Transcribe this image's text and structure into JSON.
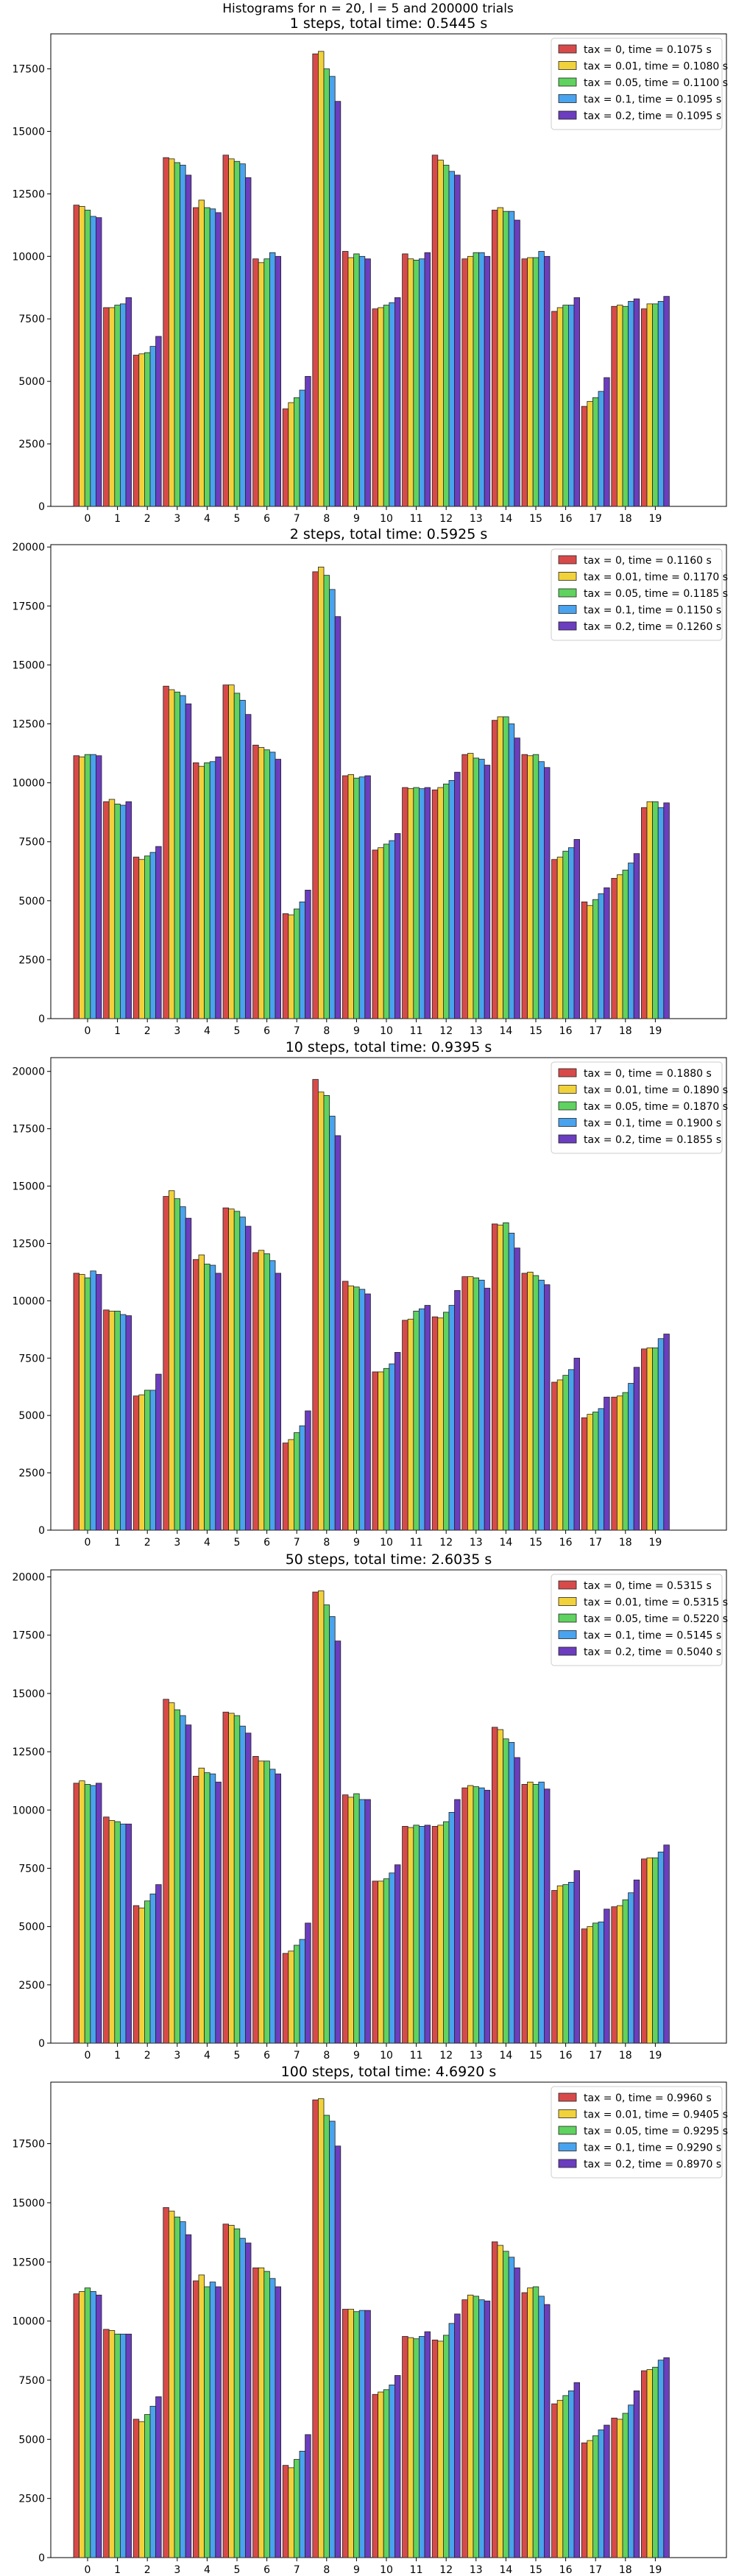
{
  "figure": {
    "suptitle": "Histograms for n = 20, l = 5 and 200000 trials"
  },
  "series_colors": [
    "#d84a4a",
    "#f2d23a",
    "#5fd25f",
    "#49a3ef",
    "#6b3dbf"
  ],
  "chart_data": [
    {
      "type": "bar",
      "title": "1 steps, total time: 0.5445 s",
      "xlabel": "",
      "ylabel": "",
      "categories": [
        "0",
        "1",
        "2",
        "3",
        "4",
        "5",
        "6",
        "7",
        "8",
        "9",
        "10",
        "11",
        "12",
        "13",
        "14",
        "15",
        "16",
        "17",
        "18",
        "19"
      ],
      "ylim": [
        0,
        18900
      ],
      "yticks": [
        0,
        2500,
        5000,
        7500,
        10000,
        12500,
        15000,
        17500
      ],
      "grid": false,
      "legend": "top-right",
      "series": [
        {
          "name": "tax = 0, time = 0.1075 s",
          "values": [
            12050,
            7950,
            6050,
            13950,
            11950,
            14050,
            9900,
            3900,
            18100,
            10200,
            7900,
            10100,
            14050,
            9900,
            11850,
            9900,
            7800,
            4000,
            8000,
            7900
          ]
        },
        {
          "name": "tax = 0.01, time = 0.1080 s",
          "values": [
            12000,
            7950,
            6100,
            13900,
            12250,
            13900,
            9750,
            4150,
            18200,
            9950,
            7950,
            9900,
            13850,
            10000,
            11950,
            9950,
            7950,
            4200,
            8050,
            8100
          ]
        },
        {
          "name": "tax = 0.05, time = 0.1100 s",
          "values": [
            11850,
            8050,
            6150,
            13750,
            11950,
            13800,
            9900,
            4350,
            17500,
            10100,
            8050,
            9850,
            13650,
            10150,
            11800,
            9950,
            8050,
            4350,
            8000,
            8100
          ]
        },
        {
          "name": "tax = 0.1, time = 0.1095 s",
          "values": [
            11600,
            8100,
            6400,
            13650,
            11900,
            13700,
            10150,
            4650,
            17200,
            10000,
            8150,
            9900,
            13400,
            10150,
            11800,
            10200,
            8050,
            4600,
            8200,
            8200
          ]
        },
        {
          "name": "tax = 0.2, time = 0.1095 s",
          "values": [
            11550,
            8350,
            6800,
            13250,
            11750,
            13150,
            10000,
            5200,
            16200,
            9900,
            8350,
            10150,
            13250,
            10000,
            11450,
            10000,
            8350,
            5150,
            8300,
            8400
          ]
        }
      ]
    },
    {
      "type": "bar",
      "title": "2 steps, total time: 0.5925 s",
      "xlabel": "",
      "ylabel": "",
      "categories": [
        "0",
        "1",
        "2",
        "3",
        "4",
        "5",
        "6",
        "7",
        "8",
        "9",
        "10",
        "11",
        "12",
        "13",
        "14",
        "15",
        "16",
        "17",
        "18",
        "19"
      ],
      "ylim": [
        0,
        20100
      ],
      "yticks": [
        0,
        2500,
        5000,
        7500,
        10000,
        12500,
        15000,
        17500,
        20000
      ],
      "grid": false,
      "legend": "top-right",
      "series": [
        {
          "name": "tax = 0, time = 0.1160 s",
          "values": [
            11150,
            9200,
            6850,
            14100,
            10850,
            14150,
            11600,
            4450,
            18950,
            10300,
            7150,
            9800,
            9700,
            11200,
            12650,
            11200,
            6750,
            4950,
            5950,
            8950
          ]
        },
        {
          "name": "tax = 0.01, time = 0.1170 s",
          "values": [
            11100,
            9300,
            6750,
            13950,
            10700,
            14150,
            11500,
            4400,
            19150,
            10350,
            7250,
            9750,
            9800,
            11250,
            12800,
            11150,
            6850,
            4800,
            6100,
            9200
          ]
        },
        {
          "name": "tax = 0.05, time = 0.1185 s",
          "values": [
            11200,
            9100,
            6900,
            13850,
            10850,
            13800,
            11400,
            4650,
            18800,
            10200,
            7400,
            9800,
            9950,
            11050,
            12800,
            11200,
            7100,
            5050,
            6300,
            9200
          ]
        },
        {
          "name": "tax = 0.1, time = 0.1150 s",
          "values": [
            11200,
            9050,
            7050,
            13700,
            10900,
            13500,
            11300,
            4950,
            18200,
            10250,
            7550,
            9750,
            10100,
            11000,
            12500,
            10900,
            7250,
            5300,
            6600,
            8950
          ]
        },
        {
          "name": "tax = 0.2, time = 0.1260 s",
          "values": [
            11150,
            9200,
            7300,
            13350,
            11100,
            12900,
            11000,
            5450,
            17050,
            10300,
            7850,
            9800,
            10450,
            10750,
            11900,
            10650,
            7600,
            5550,
            7000,
            9150
          ]
        }
      ]
    },
    {
      "type": "bar",
      "title": "10 steps, total time: 0.9395 s",
      "xlabel": "",
      "ylabel": "",
      "categories": [
        "0",
        "1",
        "2",
        "3",
        "4",
        "5",
        "6",
        "7",
        "8",
        "9",
        "10",
        "11",
        "12",
        "13",
        "14",
        "15",
        "16",
        "17",
        "18",
        "19"
      ],
      "ylim": [
        0,
        20600
      ],
      "yticks": [
        0,
        2500,
        5000,
        7500,
        10000,
        12500,
        15000,
        17500,
        20000
      ],
      "grid": false,
      "legend": "top-right",
      "series": [
        {
          "name": "tax = 0, time = 0.1880 s",
          "values": [
            11200,
            9600,
            5850,
            14550,
            11800,
            14050,
            12100,
            3800,
            19650,
            10850,
            6900,
            9150,
            9300,
            11050,
            13350,
            11200,
            6450,
            4900,
            5800,
            7900
          ]
        },
        {
          "name": "tax = 0.01, time = 0.1890 s",
          "values": [
            11150,
            9550,
            5900,
            14800,
            12000,
            14000,
            12200,
            3950,
            19100,
            10650,
            6900,
            9200,
            9250,
            11050,
            13300,
            11250,
            6550,
            5050,
            5850,
            7950
          ]
        },
        {
          "name": "tax = 0.05, time = 0.1870 s",
          "values": [
            11000,
            9550,
            6100,
            14450,
            11600,
            13900,
            12050,
            4250,
            18950,
            10600,
            7050,
            9550,
            9500,
            11000,
            13400,
            11100,
            6750,
            5150,
            6000,
            7950
          ]
        },
        {
          "name": "tax = 0.1, time = 0.1900 s",
          "values": [
            11300,
            9400,
            6100,
            14100,
            11550,
            13650,
            11750,
            4550,
            18050,
            10500,
            7250,
            9650,
            9800,
            10900,
            12950,
            10900,
            7000,
            5300,
            6400,
            8350
          ]
        },
        {
          "name": "tax = 0.2, time = 0.1855 s",
          "values": [
            11150,
            9350,
            6800,
            13600,
            11200,
            13250,
            11200,
            5200,
            17200,
            10300,
            7750,
            9800,
            10450,
            10550,
            12300,
            10700,
            7500,
            5800,
            7100,
            8550
          ]
        }
      ]
    },
    {
      "type": "bar",
      "title": "50 steps, total time: 2.6035 s",
      "xlabel": "",
      "ylabel": "",
      "categories": [
        "0",
        "1",
        "2",
        "3",
        "4",
        "5",
        "6",
        "7",
        "8",
        "9",
        "10",
        "11",
        "12",
        "13",
        "14",
        "15",
        "16",
        "17",
        "18",
        "19"
      ],
      "ylim": [
        0,
        20300
      ],
      "yticks": [
        0,
        2500,
        5000,
        7500,
        10000,
        12500,
        15000,
        17500,
        20000
      ],
      "grid": false,
      "legend": "top-right",
      "series": [
        {
          "name": "tax = 0, time = 0.5315 s",
          "values": [
            11150,
            9700,
            5900,
            14750,
            11450,
            14200,
            12300,
            3850,
            19350,
            10650,
            6950,
            9300,
            9300,
            10950,
            13550,
            11100,
            6550,
            4900,
            5850,
            7900
          ]
        },
        {
          "name": "tax = 0.01, time = 0.5315 s",
          "values": [
            11250,
            9550,
            5800,
            14600,
            11800,
            14150,
            12100,
            3950,
            19400,
            10550,
            6950,
            9250,
            9350,
            11050,
            13450,
            11200,
            6750,
            5000,
            5900,
            7950
          ]
        },
        {
          "name": "tax = 0.05, time = 0.5220 s",
          "values": [
            11100,
            9500,
            6100,
            14300,
            11600,
            14050,
            12100,
            4200,
            18800,
            10700,
            7050,
            9350,
            9500,
            11000,
            13050,
            11100,
            6800,
            5150,
            6150,
            7950
          ]
        },
        {
          "name": "tax = 0.1, time = 0.5145 s",
          "values": [
            11050,
            9400,
            6400,
            14050,
            11550,
            13600,
            11750,
            4450,
            18300,
            10450,
            7300,
            9300,
            9900,
            10950,
            12900,
            11200,
            6900,
            5200,
            6450,
            8200
          ]
        },
        {
          "name": "tax = 0.2, time = 0.5040 s",
          "values": [
            11150,
            9400,
            6800,
            13650,
            11200,
            13300,
            11550,
            5150,
            17250,
            10450,
            7650,
            9350,
            10450,
            10850,
            12250,
            10900,
            7400,
            5750,
            7000,
            8500
          ]
        }
      ]
    },
    {
      "type": "bar",
      "title": "100 steps, total time: 4.6920 s",
      "xlabel": "",
      "ylabel": "",
      "categories": [
        "0",
        "1",
        "2",
        "3",
        "4",
        "5",
        "6",
        "7",
        "8",
        "9",
        "10",
        "11",
        "12",
        "13",
        "14",
        "15",
        "16",
        "17",
        "18",
        "19"
      ],
      "ylim": [
        0,
        20100
      ],
      "yticks": [
        0,
        2500,
        5000,
        7500,
        10000,
        12500,
        15000,
        17500
      ],
      "grid": false,
      "legend": "top-right",
      "series": [
        {
          "name": "tax = 0, time = 0.9960 s",
          "values": [
            11150,
            9650,
            5850,
            14800,
            11700,
            14100,
            12250,
            3900,
            19350,
            10500,
            6900,
            9350,
            9200,
            10900,
            13350,
            11200,
            6500,
            4850,
            5900,
            7900
          ]
        },
        {
          "name": "tax = 0.01, time = 0.9405 s",
          "values": [
            11250,
            9600,
            5750,
            14650,
            11950,
            14050,
            12250,
            3800,
            19400,
            10500,
            7000,
            9300,
            9150,
            11100,
            13200,
            11400,
            6650,
            4950,
            5850,
            7950
          ]
        },
        {
          "name": "tax = 0.05, time = 0.9295 s",
          "values": [
            11400,
            9450,
            6050,
            14400,
            11450,
            13900,
            12100,
            4150,
            18700,
            10400,
            7100,
            9250,
            9400,
            11050,
            12950,
            11450,
            6850,
            5150,
            6100,
            8050
          ]
        },
        {
          "name": "tax = 0.1, time = 0.9290 s",
          "values": [
            11250,
            9450,
            6400,
            14200,
            11650,
            13500,
            11800,
            4500,
            18450,
            10450,
            7300,
            9350,
            9900,
            10900,
            12700,
            11050,
            7050,
            5400,
            6450,
            8350
          ]
        },
        {
          "name": "tax = 0.2, time = 0.8970 s",
          "values": [
            11100,
            9450,
            6800,
            13650,
            11450,
            13300,
            11450,
            5200,
            17400,
            10450,
            7700,
            9550,
            10300,
            10850,
            12250,
            10700,
            7400,
            5600,
            7050,
            8450
          ]
        }
      ]
    }
  ]
}
